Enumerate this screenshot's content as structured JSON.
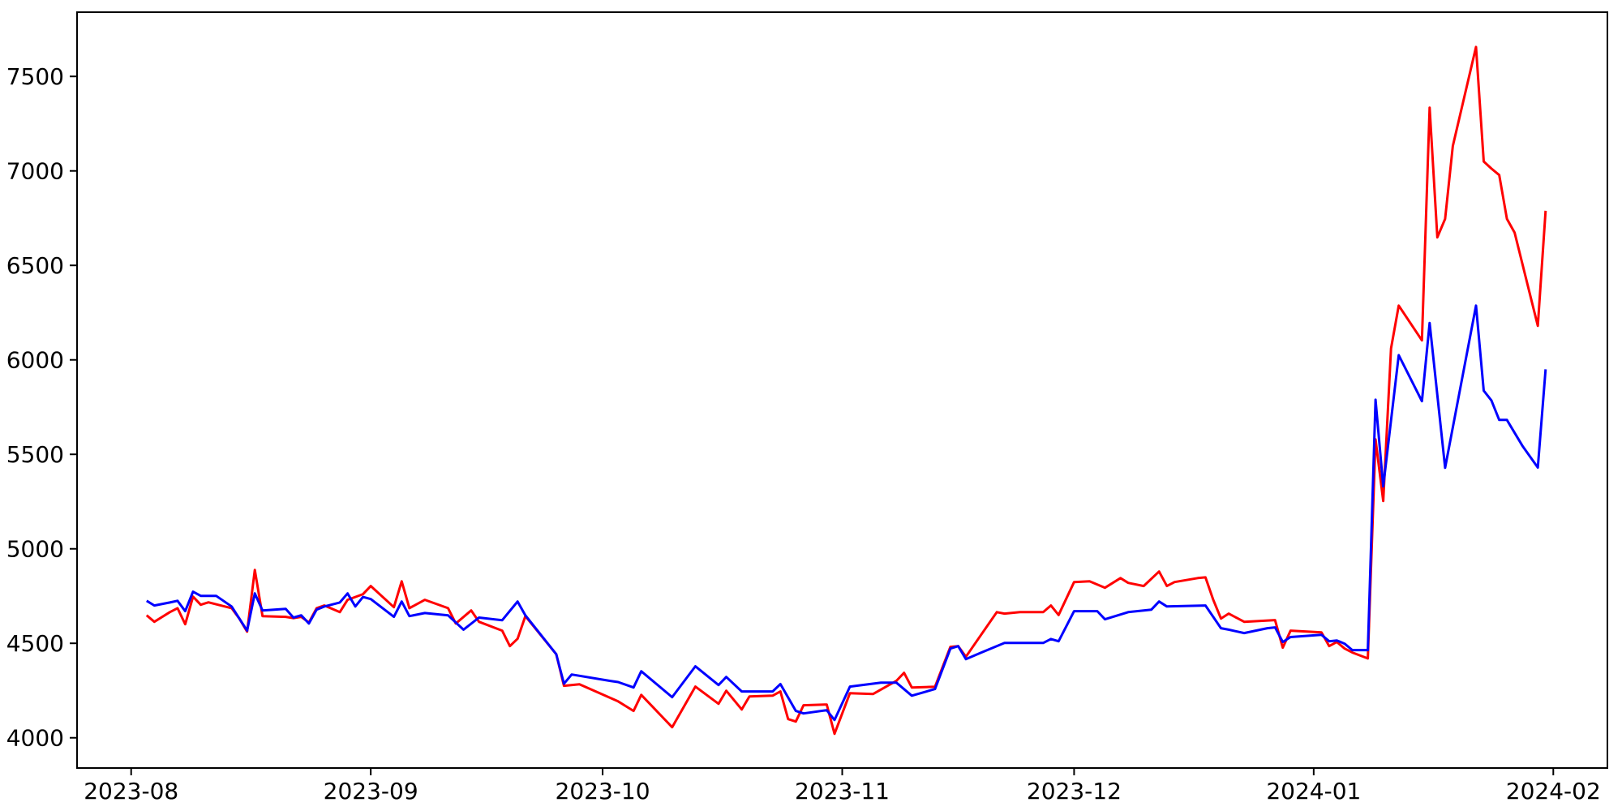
{
  "figure": {
    "background": "#ffffff",
    "spine_color": "#000000",
    "tick_color": "#000000",
    "tick_label_color": "#000000",
    "tick_font_size": 28
  },
  "chart_data": {
    "type": "line",
    "title": "",
    "xlabel": "",
    "ylabel": "",
    "grid": false,
    "legend": null,
    "x_axis": {
      "tick_dates": [
        "2023-08-01",
        "2023-09-01",
        "2023-10-01",
        "2023-11-01",
        "2023-12-01",
        "2024-01-01",
        "2024-02-01"
      ],
      "tick_labels": [
        "2023-08",
        "2023-09",
        "2023-10",
        "2023-11",
        "2023-12",
        "2024-01",
        "2024-02"
      ],
      "lim_dates": [
        "2023-07-25",
        "2024-02-08"
      ]
    },
    "y_axis": {
      "ticks": [
        4000,
        4500,
        5000,
        5500,
        6000,
        6500,
        7000,
        7500
      ],
      "tick_labels": [
        "4000",
        "4500",
        "5000",
        "5500",
        "6000",
        "6500",
        "7000",
        "7500"
      ],
      "lim": [
        3840,
        7840
      ]
    },
    "series": [
      {
        "name": "red-series",
        "color": "#ff0000",
        "line_width": 3,
        "points": [
          [
            "2023-08-03",
            4648
          ],
          [
            "2023-08-04",
            4614
          ],
          [
            "2023-08-06",
            4665
          ],
          [
            "2023-08-07",
            4686
          ],
          [
            "2023-08-08",
            4601
          ],
          [
            "2023-08-09",
            4747
          ],
          [
            "2023-08-10",
            4704
          ],
          [
            "2023-08-11",
            4717
          ],
          [
            "2023-08-14",
            4686
          ],
          [
            "2023-08-15",
            4631
          ],
          [
            "2023-08-16",
            4562
          ],
          [
            "2023-08-17",
            4888
          ],
          [
            "2023-08-18",
            4644
          ],
          [
            "2023-08-21",
            4640
          ],
          [
            "2023-08-22",
            4633
          ],
          [
            "2023-08-23",
            4640
          ],
          [
            "2023-08-24",
            4610
          ],
          [
            "2023-08-25",
            4686
          ],
          [
            "2023-08-26",
            4700
          ],
          [
            "2023-08-28",
            4665
          ],
          [
            "2023-08-29",
            4730
          ],
          [
            "2023-08-31",
            4760
          ],
          [
            "2023-09-01",
            4803
          ],
          [
            "2023-09-04",
            4691
          ],
          [
            "2023-09-05",
            4828
          ],
          [
            "2023-09-06",
            4686
          ],
          [
            "2023-09-08",
            4730
          ],
          [
            "2023-09-11",
            4686
          ],
          [
            "2023-09-12",
            4605
          ],
          [
            "2023-09-14",
            4674
          ],
          [
            "2023-09-15",
            4614
          ],
          [
            "2023-09-18",
            4567
          ],
          [
            "2023-09-19",
            4485
          ],
          [
            "2023-09-20",
            4524
          ],
          [
            "2023-09-21",
            4644
          ],
          [
            "2023-09-25",
            4442
          ],
          [
            "2023-09-26",
            4275
          ],
          [
            "2023-09-28",
            4283
          ],
          [
            "2023-10-03",
            4193
          ],
          [
            "2023-10-05",
            4142
          ],
          [
            "2023-10-06",
            4227
          ],
          [
            "2023-10-10",
            4056
          ],
          [
            "2023-10-13",
            4271
          ],
          [
            "2023-10-16",
            4180
          ],
          [
            "2023-10-17",
            4249
          ],
          [
            "2023-10-19",
            4150
          ],
          [
            "2023-10-20",
            4219
          ],
          [
            "2023-10-23",
            4223
          ],
          [
            "2023-10-24",
            4245
          ],
          [
            "2023-10-25",
            4099
          ],
          [
            "2023-10-26",
            4086
          ],
          [
            "2023-10-27",
            4172
          ],
          [
            "2023-10-30",
            4176
          ],
          [
            "2023-10-31",
            4021
          ],
          [
            "2023-11-02",
            4236
          ],
          [
            "2023-11-05",
            4232
          ],
          [
            "2023-11-08",
            4301
          ],
          [
            "2023-11-09",
            4344
          ],
          [
            "2023-11-10",
            4266
          ],
          [
            "2023-11-13",
            4270
          ],
          [
            "2023-11-15",
            4481
          ],
          [
            "2023-11-16",
            4485
          ],
          [
            "2023-11-17",
            4429
          ],
          [
            "2023-11-21",
            4665
          ],
          [
            "2023-11-22",
            4657
          ],
          [
            "2023-11-24",
            4665
          ],
          [
            "2023-11-27",
            4665
          ],
          [
            "2023-11-28",
            4700
          ],
          [
            "2023-11-29",
            4650
          ],
          [
            "2023-12-01",
            4824
          ],
          [
            "2023-12-03",
            4828
          ],
          [
            "2023-12-05",
            4794
          ],
          [
            "2023-12-07",
            4845
          ],
          [
            "2023-12-08",
            4820
          ],
          [
            "2023-12-10",
            4803
          ],
          [
            "2023-12-12",
            4880
          ],
          [
            "2023-12-13",
            4803
          ],
          [
            "2023-12-14",
            4824
          ],
          [
            "2023-12-17",
            4845
          ],
          [
            "2023-12-18",
            4849
          ],
          [
            "2023-12-19",
            4730
          ],
          [
            "2023-12-20",
            4631
          ],
          [
            "2023-12-21",
            4657
          ],
          [
            "2023-12-23",
            4614
          ],
          [
            "2023-12-27",
            4623
          ],
          [
            "2023-12-28",
            4477
          ],
          [
            "2023-12-29",
            4567
          ],
          [
            "2024-01-02",
            4558
          ],
          [
            "2024-01-03",
            4485
          ],
          [
            "2024-01-04",
            4507
          ],
          [
            "2024-01-05",
            4472
          ],
          [
            "2024-01-06",
            4451
          ],
          [
            "2024-01-08",
            4420
          ],
          [
            "2024-01-09",
            5579
          ],
          [
            "2024-01-10",
            5253
          ],
          [
            "2024-01-11",
            6060
          ],
          [
            "2024-01-12",
            6287
          ],
          [
            "2024-01-15",
            6103
          ],
          [
            "2024-01-16",
            7335
          ],
          [
            "2024-01-17",
            6648
          ],
          [
            "2024-01-18",
            6746
          ],
          [
            "2024-01-19",
            7132
          ],
          [
            "2024-01-22",
            7656
          ],
          [
            "2024-01-23",
            7050
          ],
          [
            "2024-01-24",
            7012
          ],
          [
            "2024-01-25",
            6978
          ],
          [
            "2024-01-26",
            6746
          ],
          [
            "2024-01-27",
            6673
          ],
          [
            "2024-01-30",
            6180
          ],
          [
            "2024-01-31",
            6789
          ]
        ]
      },
      {
        "name": "blue-series",
        "color": "#0000ff",
        "line_width": 3,
        "points": [
          [
            "2023-08-03",
            4725
          ],
          [
            "2023-08-04",
            4700
          ],
          [
            "2023-08-06",
            4716
          ],
          [
            "2023-08-07",
            4725
          ],
          [
            "2023-08-08",
            4670
          ],
          [
            "2023-08-09",
            4773
          ],
          [
            "2023-08-10",
            4751
          ],
          [
            "2023-08-12",
            4751
          ],
          [
            "2023-08-14",
            4695
          ],
          [
            "2023-08-15",
            4631
          ],
          [
            "2023-08-16",
            4567
          ],
          [
            "2023-08-17",
            4764
          ],
          [
            "2023-08-18",
            4674
          ],
          [
            "2023-08-21",
            4682
          ],
          [
            "2023-08-22",
            4636
          ],
          [
            "2023-08-23",
            4648
          ],
          [
            "2023-08-24",
            4605
          ],
          [
            "2023-08-25",
            4678
          ],
          [
            "2023-08-26",
            4695
          ],
          [
            "2023-08-28",
            4716
          ],
          [
            "2023-08-29",
            4764
          ],
          [
            "2023-08-30",
            4695
          ],
          [
            "2023-08-31",
            4745
          ],
          [
            "2023-09-01",
            4734
          ],
          [
            "2023-09-04",
            4640
          ],
          [
            "2023-09-05",
            4721
          ],
          [
            "2023-09-06",
            4644
          ],
          [
            "2023-09-08",
            4660
          ],
          [
            "2023-09-11",
            4648
          ],
          [
            "2023-09-13",
            4572
          ],
          [
            "2023-09-15",
            4636
          ],
          [
            "2023-09-18",
            4622
          ],
          [
            "2023-09-20",
            4721
          ],
          [
            "2023-09-21",
            4648
          ],
          [
            "2023-09-25",
            4442
          ],
          [
            "2023-09-26",
            4286
          ],
          [
            "2023-09-27",
            4335
          ],
          [
            "2023-10-02",
            4301
          ],
          [
            "2023-10-03",
            4295
          ],
          [
            "2023-10-05",
            4266
          ],
          [
            "2023-10-06",
            4352
          ],
          [
            "2023-10-10",
            4215
          ],
          [
            "2023-10-13",
            4378
          ],
          [
            "2023-10-16",
            4279
          ],
          [
            "2023-10-17",
            4322
          ],
          [
            "2023-10-19",
            4245
          ],
          [
            "2023-10-23",
            4245
          ],
          [
            "2023-10-24",
            4284
          ],
          [
            "2023-10-26",
            4142
          ],
          [
            "2023-10-27",
            4129
          ],
          [
            "2023-10-30",
            4146
          ],
          [
            "2023-10-31",
            4094
          ],
          [
            "2023-11-02",
            4271
          ],
          [
            "2023-11-06",
            4292
          ],
          [
            "2023-11-08",
            4292
          ],
          [
            "2023-11-10",
            4223
          ],
          [
            "2023-11-13",
            4258
          ],
          [
            "2023-11-15",
            4472
          ],
          [
            "2023-11-16",
            4485
          ],
          [
            "2023-11-17",
            4416
          ],
          [
            "2023-11-19",
            4451
          ],
          [
            "2023-11-22",
            4502
          ],
          [
            "2023-11-27",
            4502
          ],
          [
            "2023-11-28",
            4523
          ],
          [
            "2023-11-29",
            4511
          ],
          [
            "2023-12-01",
            4670
          ],
          [
            "2023-12-04",
            4670
          ],
          [
            "2023-12-05",
            4627
          ],
          [
            "2023-12-08",
            4665
          ],
          [
            "2023-12-10",
            4674
          ],
          [
            "2023-12-11",
            4678
          ],
          [
            "2023-12-12",
            4721
          ],
          [
            "2023-12-13",
            4695
          ],
          [
            "2023-12-18",
            4700
          ],
          [
            "2023-12-20",
            4580
          ],
          [
            "2023-12-21",
            4572
          ],
          [
            "2023-12-23",
            4554
          ],
          [
            "2023-12-26",
            4580
          ],
          [
            "2023-12-27",
            4584
          ],
          [
            "2023-12-28",
            4507
          ],
          [
            "2023-12-29",
            4533
          ],
          [
            "2024-01-02",
            4545
          ],
          [
            "2024-01-03",
            4511
          ],
          [
            "2024-01-04",
            4515
          ],
          [
            "2024-01-05",
            4498
          ],
          [
            "2024-01-06",
            4464
          ],
          [
            "2024-01-08",
            4464
          ],
          [
            "2024-01-09",
            5789
          ],
          [
            "2024-01-10",
            5330
          ],
          [
            "2024-01-12",
            6025
          ],
          [
            "2024-01-15",
            5781
          ],
          [
            "2024-01-16",
            6195
          ],
          [
            "2024-01-18",
            5429
          ],
          [
            "2024-01-22",
            6287
          ],
          [
            "2024-01-23",
            5837
          ],
          [
            "2024-01-24",
            5785
          ],
          [
            "2024-01-25",
            5682
          ],
          [
            "2024-01-26",
            5682
          ],
          [
            "2024-01-28",
            5545
          ],
          [
            "2024-01-30",
            5430
          ],
          [
            "2024-01-31",
            5950
          ]
        ]
      }
    ]
  }
}
